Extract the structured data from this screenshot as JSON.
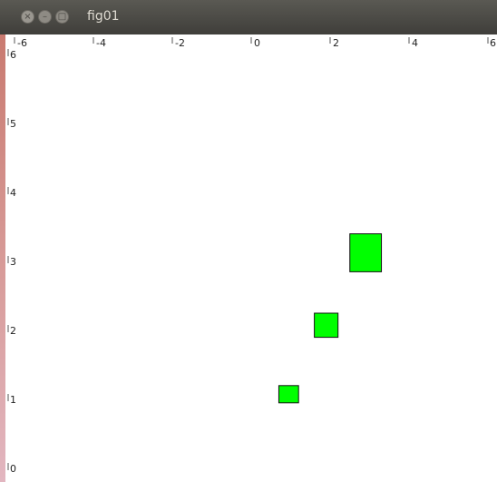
{
  "window": {
    "title": "fig01",
    "controls": [
      "close-icon",
      "minimize-icon",
      "maximize-icon"
    ]
  },
  "plot": {
    "xlim": [
      -6,
      6
    ],
    "ylim": [
      0,
      6
    ],
    "x_ticks": [
      -6,
      -4,
      -2,
      0,
      2,
      4,
      6
    ],
    "y_ticks": [
      0,
      1,
      2,
      3,
      4,
      5,
      6
    ],
    "mark_color": "#00ff00",
    "rects": [
      {
        "x0": 0.7,
        "x1": 1.2,
        "y0": 0.95,
        "y1": 1.2
      },
      {
        "x0": 1.6,
        "x1": 2.2,
        "y0": 1.9,
        "y1": 2.25
      },
      {
        "x0": 2.5,
        "x1": 3.3,
        "y0": 2.85,
        "y1": 3.4
      }
    ]
  }
}
